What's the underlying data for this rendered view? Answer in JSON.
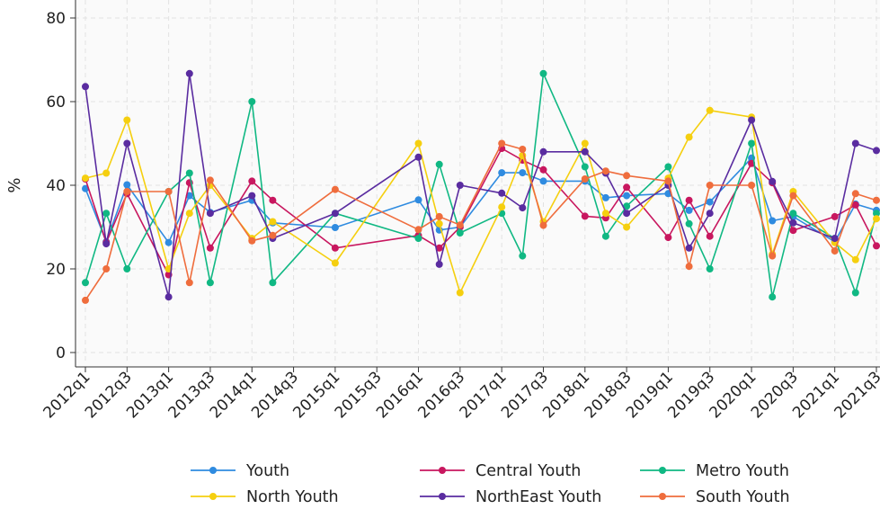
{
  "chart_data": {
    "type": "line",
    "title": "",
    "xlabel": "",
    "ylabel": "%",
    "ylim": [
      0,
      80
    ],
    "yticks": [
      0,
      20,
      40,
      60,
      80
    ],
    "grid": "dashed",
    "legend_position": "bottom",
    "x": [
      "2012q1",
      "2012q2",
      "2012q3",
      "2012q4",
      "2013q1",
      "2013q2",
      "2013q3",
      "2013q4",
      "2014q1",
      "2014q2",
      "2014q3",
      "2014q4",
      "2015q1",
      "2015q2",
      "2015q3",
      "2015q4",
      "2016q1",
      "2016q2",
      "2016q3",
      "2016q4",
      "2017q1",
      "2017q2",
      "2017q3",
      "2017q4",
      "2018q1",
      "2018q2",
      "2018q3",
      "2018q4",
      "2019q1",
      "2019q2",
      "2019q3",
      "2019q4",
      "2020q1",
      "2020q2",
      "2020q3",
      "2020q4",
      "2021q1",
      "2021q2",
      "2021q3"
    ],
    "x_tick_labels": [
      "2012q1",
      "2012q3",
      "2013q1",
      "2013q3",
      "2014q1",
      "2014q3",
      "2015q1",
      "2015q3",
      "2016q1",
      "2016q3",
      "2017q1",
      "2017q3",
      "2018q1",
      "2018q3",
      "2019q1",
      "2019q3",
      "2020q1",
      "2020q3",
      "2021q1",
      "2021q3"
    ],
    "series": [
      {
        "name": "Youth",
        "color": "#2f8be0",
        "points": [
          [
            "2012q1",
            39.2
          ],
          [
            "2012q2",
            26.5
          ],
          [
            "2012q3",
            40.1
          ],
          [
            "2013q1",
            26.3
          ],
          [
            "2013q2",
            37.5
          ],
          [
            "2013q3",
            33.5
          ],
          [
            "2014q1",
            36.4
          ],
          [
            "2014q2",
            31.0
          ],
          [
            "2015q1",
            29.9
          ],
          [
            "2016q1",
            36.5
          ],
          [
            "2016q2",
            29.3
          ],
          [
            "2016q3",
            30.0
          ],
          [
            "2017q1",
            43.0
          ],
          [
            "2017q2",
            43.0
          ],
          [
            "2017q3",
            41.0
          ],
          [
            "2018q1",
            41.0
          ],
          [
            "2018q2",
            37.0
          ],
          [
            "2018q3",
            37.5
          ],
          [
            "2019q1",
            38.0
          ],
          [
            "2019q2",
            34.0
          ],
          [
            "2019q3",
            36.0
          ],
          [
            "2020q1",
            46.5
          ],
          [
            "2020q2",
            31.5
          ],
          [
            "2020q3",
            32.5
          ],
          [
            "2021q1",
            26.5
          ],
          [
            "2021q2",
            35.5
          ],
          [
            "2021q3",
            34.0
          ]
        ]
      },
      {
        "name": "Central Youth",
        "color": "#c8175f",
        "points": [
          [
            "2012q1",
            41.5
          ],
          [
            "2012q2",
            26.3
          ],
          [
            "2012q3",
            38.0
          ],
          [
            "2013q1",
            18.6
          ],
          [
            "2013q2",
            40.6
          ],
          [
            "2013q3",
            25.0
          ],
          [
            "2014q1",
            41.0
          ],
          [
            "2014q2",
            36.4
          ],
          [
            "2015q1",
            25.0
          ],
          [
            "2016q1",
            28.0
          ],
          [
            "2016q2",
            25.0
          ],
          [
            "2016q3",
            30.0
          ],
          [
            "2017q1",
            48.8
          ],
          [
            "2017q2",
            46.0
          ],
          [
            "2017q3",
            43.7
          ],
          [
            "2018q1",
            32.6
          ],
          [
            "2018q2",
            32.2
          ],
          [
            "2018q3",
            39.5
          ],
          [
            "2019q1",
            27.5
          ],
          [
            "2019q2",
            36.4
          ],
          [
            "2019q3",
            27.8
          ],
          [
            "2020q1",
            45.2
          ],
          [
            "2020q2",
            40.6
          ],
          [
            "2020q3",
            29.2
          ],
          [
            "2021q1",
            32.5
          ],
          [
            "2021q2",
            35.3
          ],
          [
            "2021q3",
            25.5
          ]
        ]
      },
      {
        "name": "Metro Youth",
        "color": "#10b883",
        "points": [
          [
            "2012q1",
            16.7
          ],
          [
            "2012q2",
            33.3
          ],
          [
            "2012q3",
            20.0
          ],
          [
            "2013q1",
            38.5
          ],
          [
            "2013q2",
            42.9
          ],
          [
            "2013q3",
            16.7
          ],
          [
            "2014q1",
            60.0
          ],
          [
            "2014q2",
            16.7
          ],
          [
            "2015q1",
            33.3
          ],
          [
            "2016q1",
            27.3
          ],
          [
            "2016q2",
            45.0
          ],
          [
            "2016q3",
            28.6
          ],
          [
            "2017q1",
            33.3
          ],
          [
            "2017q2",
            23.1
          ],
          [
            "2017q3",
            66.7
          ],
          [
            "2018q1",
            44.4
          ],
          [
            "2018q2",
            27.8
          ],
          [
            "2018q3",
            35.0
          ],
          [
            "2019q1",
            44.4
          ],
          [
            "2019q2",
            30.8
          ],
          [
            "2019q3",
            20.0
          ],
          [
            "2020q1",
            50.0
          ],
          [
            "2020q2",
            13.3
          ],
          [
            "2020q3",
            33.3
          ],
          [
            "2021q1",
            27.3
          ],
          [
            "2021q2",
            14.3
          ],
          [
            "2021q3",
            33.3
          ]
        ]
      },
      {
        "name": "North Youth",
        "color": "#f5cf0f",
        "points": [
          [
            "2012q1",
            41.7
          ],
          [
            "2012q2",
            42.9
          ],
          [
            "2012q3",
            55.6
          ],
          [
            "2013q1",
            20.0
          ],
          [
            "2013q2",
            33.3
          ],
          [
            "2013q3",
            40.0
          ],
          [
            "2014q1",
            27.3
          ],
          [
            "2014q2",
            31.3
          ],
          [
            "2015q1",
            21.4
          ],
          [
            "2016q1",
            50.0
          ],
          [
            "2016q2",
            30.8
          ],
          [
            "2016q3",
            14.3
          ],
          [
            "2017q1",
            34.8
          ],
          [
            "2017q2",
            47.1
          ],
          [
            "2017q3",
            31.3
          ],
          [
            "2018q1",
            50.0
          ],
          [
            "2018q2",
            33.3
          ],
          [
            "2018q3",
            30.0
          ],
          [
            "2019q1",
            41.7
          ],
          [
            "2019q2",
            51.5
          ],
          [
            "2019q3",
            57.9
          ],
          [
            "2020q1",
            56.3
          ],
          [
            "2020q2",
            23.5
          ],
          [
            "2020q3",
            38.5
          ],
          [
            "2021q1",
            26.3
          ],
          [
            "2021q2",
            22.2
          ],
          [
            "2021q3",
            32.0
          ]
        ]
      },
      {
        "name": "NorthEast Youth",
        "color": "#5a2ca0",
        "points": [
          [
            "2012q1",
            63.6
          ],
          [
            "2012q2",
            26.0
          ],
          [
            "2012q3",
            50.0
          ],
          [
            "2013q1",
            13.3
          ],
          [
            "2013q2",
            66.7
          ],
          [
            "2013q3",
            33.3
          ],
          [
            "2014q1",
            37.5
          ],
          [
            "2014q2",
            27.3
          ],
          [
            "2015q1",
            33.3
          ],
          [
            "2016q1",
            46.7
          ],
          [
            "2016q2",
            21.1
          ],
          [
            "2016q3",
            40.0
          ],
          [
            "2017q1",
            38.1
          ],
          [
            "2017q2",
            34.6
          ],
          [
            "2017q3",
            48.0
          ],
          [
            "2018q1",
            48.0
          ],
          [
            "2018q2",
            42.9
          ],
          [
            "2018q3",
            33.3
          ],
          [
            "2019q1",
            40.0
          ],
          [
            "2019q2",
            25.0
          ],
          [
            "2019q3",
            33.3
          ],
          [
            "2020q1",
            55.6
          ],
          [
            "2020q2",
            40.9
          ],
          [
            "2020q3",
            31.0
          ],
          [
            "2021q1",
            27.3
          ],
          [
            "2021q2",
            50.0
          ],
          [
            "2021q3",
            48.3
          ]
        ]
      },
      {
        "name": "South Youth",
        "color": "#ef6d3d",
        "points": [
          [
            "2012q1",
            12.5
          ],
          [
            "2012q2",
            20.0
          ],
          [
            "2012q3",
            38.5
          ],
          [
            "2013q1",
            38.5
          ],
          [
            "2013q2",
            16.7
          ],
          [
            "2013q3",
            41.2
          ],
          [
            "2014q1",
            26.7
          ],
          [
            "2014q2",
            28.0
          ],
          [
            "2015q1",
            39.0
          ],
          [
            "2016q1",
            29.4
          ],
          [
            "2016q2",
            32.5
          ],
          [
            "2016q3",
            30.5
          ],
          [
            "2017q1",
            50.0
          ],
          [
            "2017q2",
            48.6
          ],
          [
            "2017q3",
            30.4
          ],
          [
            "2018q1",
            41.5
          ],
          [
            "2018q2",
            43.4
          ],
          [
            "2018q3",
            42.3
          ],
          [
            "2019q1",
            41.0
          ],
          [
            "2019q2",
            20.6
          ],
          [
            "2019q3",
            40.0
          ],
          [
            "2020q1",
            40.0
          ],
          [
            "2020q2",
            23.1
          ],
          [
            "2020q3",
            37.5
          ],
          [
            "2021q1",
            24.3
          ],
          [
            "2021q2",
            38.0
          ],
          [
            "2021q3",
            36.4
          ]
        ]
      }
    ],
    "legend_order": [
      "Youth",
      "Central Youth",
      "Metro Youth",
      "North Youth",
      "NorthEast Youth",
      "South Youth"
    ]
  }
}
